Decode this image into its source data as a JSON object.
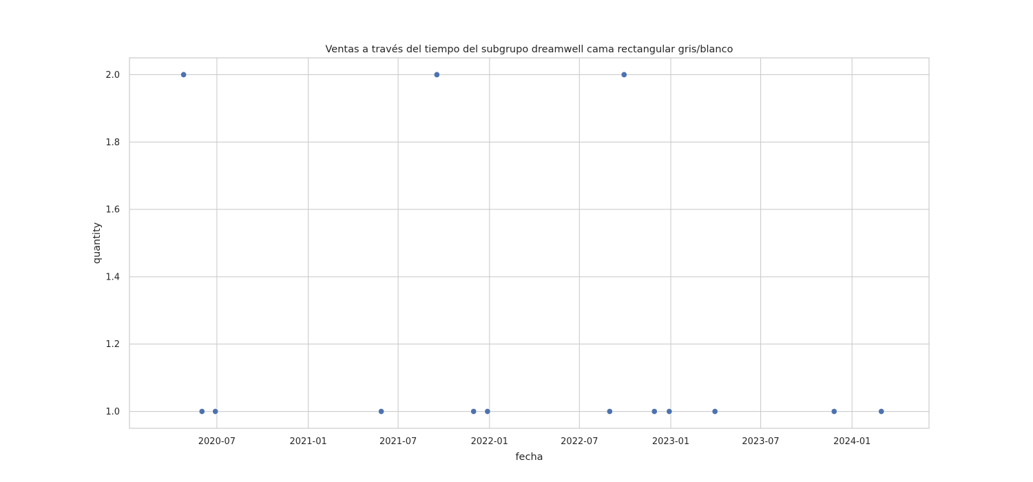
{
  "chart_data": {
    "type": "scatter",
    "title": "Ventas a través del tiempo del subgrupo dreamwell cama rectangular gris/blanco",
    "xlabel": "fecha",
    "ylabel": "quantity",
    "x_type": "date",
    "xlim": [
      "2020-01-07",
      "2024-06-04"
    ],
    "ylim": [
      0.95,
      2.05
    ],
    "x_ticks": [
      "2020-07-01",
      "2021-01-01",
      "2021-07-01",
      "2022-01-01",
      "2022-07-01",
      "2023-01-01",
      "2023-07-01",
      "2024-01-01"
    ],
    "x_tick_labels": [
      "2020-07",
      "2021-01",
      "2021-07",
      "2022-01",
      "2022-07",
      "2023-01",
      "2023-07",
      "2024-01"
    ],
    "y_ticks": [
      1.0,
      1.2,
      1.4,
      1.6,
      1.8,
      2.0
    ],
    "y_tick_labels": [
      "1.0",
      "1.2",
      "1.4",
      "1.6",
      "1.8",
      "2.0"
    ],
    "grid": true,
    "legend": "none",
    "point_color": "#4c72b0",
    "points": [
      {
        "x": "2020-04-25",
        "y": 2
      },
      {
        "x": "2020-06-01",
        "y": 1
      },
      {
        "x": "2020-06-28",
        "y": 1
      },
      {
        "x": "2021-05-28",
        "y": 1
      },
      {
        "x": "2021-09-17",
        "y": 2
      },
      {
        "x": "2021-11-30",
        "y": 1
      },
      {
        "x": "2021-12-28",
        "y": 1
      },
      {
        "x": "2022-08-31",
        "y": 1
      },
      {
        "x": "2022-09-29",
        "y": 2
      },
      {
        "x": "2022-11-29",
        "y": 1
      },
      {
        "x": "2022-12-29",
        "y": 1
      },
      {
        "x": "2023-03-31",
        "y": 1
      },
      {
        "x": "2023-11-26",
        "y": 1
      },
      {
        "x": "2024-02-29",
        "y": 1
      }
    ]
  }
}
